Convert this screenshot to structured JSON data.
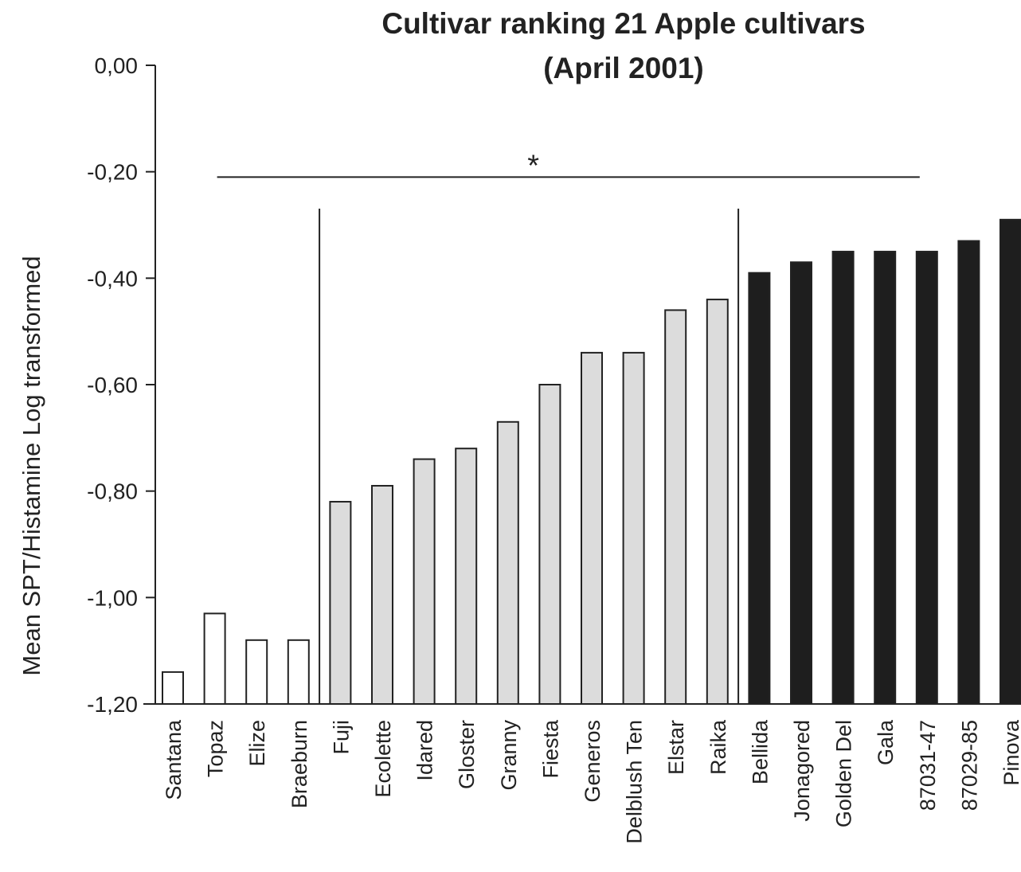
{
  "chart_data": {
    "type": "bar",
    "title": "Cultivar ranking 21 Apple cultivars",
    "subtitle": "(April 2001)",
    "xlabel": "",
    "ylabel": "Mean SPT/Histamine Log transformed",
    "ylim": [
      -1.2,
      0.0
    ],
    "yticks": [
      "0,00",
      "-0,20",
      "-0,40",
      "-0,60",
      "-0,80",
      "-1,00",
      "-1,20"
    ],
    "ytick_values": [
      0.0,
      -0.2,
      -0.4,
      -0.6,
      -0.8,
      -1.0,
      -1.2
    ],
    "grid": false,
    "categories": [
      "Santana",
      "Topaz",
      "Elize",
      "Braeburn",
      "Fuji",
      "Ecolette",
      "Idared",
      "Gloster",
      "Granny",
      "Fiesta",
      "Generos",
      "Delblush Ten",
      "Elstar",
      "Raika",
      "Bellida",
      "Jonagored",
      "Golden Del",
      "Gala",
      "87031-47",
      "87029-85",
      "Pinova"
    ],
    "values": [
      -1.14,
      -1.03,
      -1.08,
      -1.08,
      -0.82,
      -0.79,
      -0.74,
      -0.72,
      -0.67,
      -0.6,
      -0.54,
      -0.54,
      -0.46,
      -0.44,
      -0.39,
      -0.37,
      -0.35,
      -0.35,
      -0.35,
      -0.33,
      -0.29
    ],
    "groups": [
      {
        "style": "white",
        "start": 0,
        "end": 3
      },
      {
        "style": "light-gray",
        "start": 4,
        "end": 13
      },
      {
        "style": "dark",
        "start": 14,
        "end": 20
      }
    ],
    "group_separators_after": [
      3,
      13
    ],
    "significance": {
      "label": "*",
      "y": -0.21,
      "from": "Topaz",
      "to": "87031-47"
    },
    "colors": {
      "white": "#ffffff",
      "light-gray": "#dcdcdc",
      "dark": "#1e1e1e",
      "line": "#222222"
    }
  }
}
